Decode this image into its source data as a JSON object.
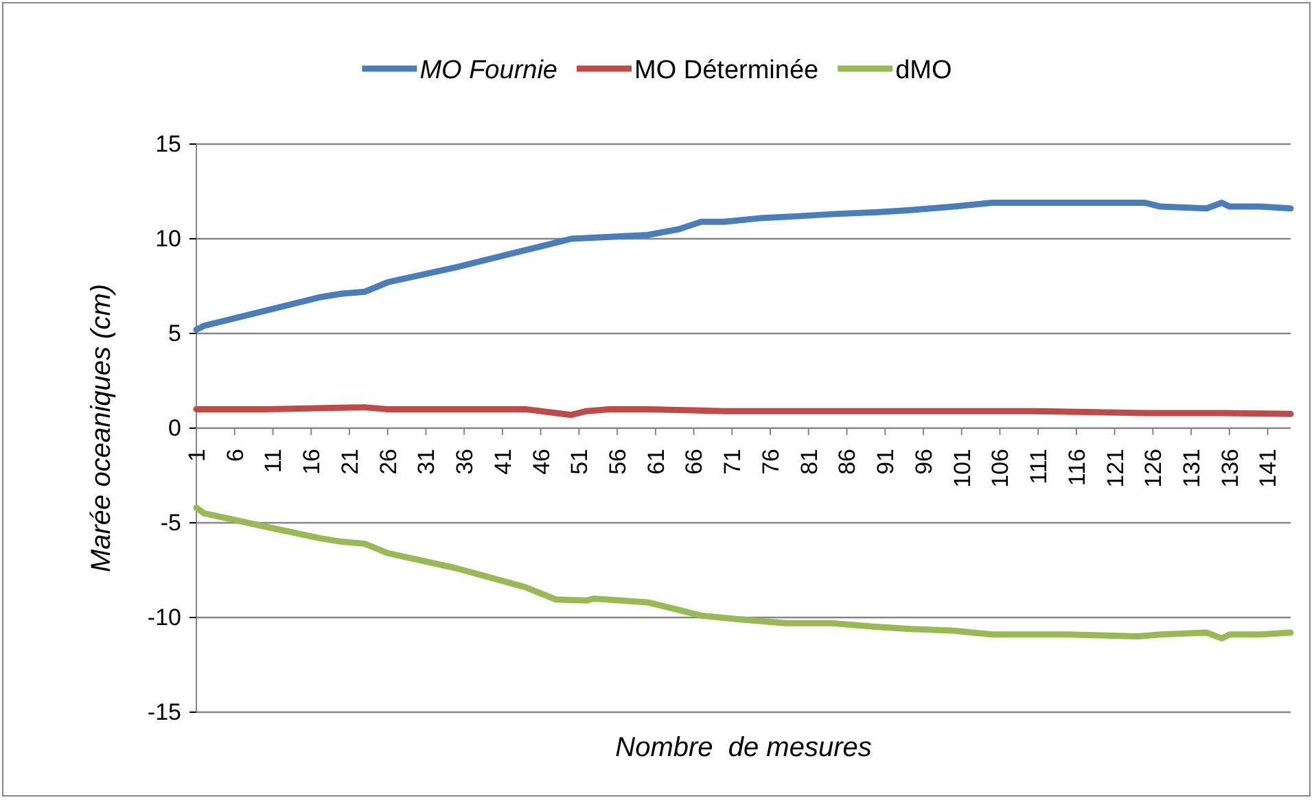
{
  "chart_data": {
    "type": "line",
    "xlabel": "Nombre  de mesures",
    "ylabel": "Marée oceaniques (cm)",
    "xlim": [
      1,
      144
    ],
    "ylim": [
      -15,
      15
    ],
    "yticks": [
      -15,
      -10,
      -5,
      0,
      5,
      10,
      15
    ],
    "xticks": [
      1,
      6,
      11,
      16,
      21,
      26,
      31,
      36,
      41,
      46,
      51,
      56,
      61,
      66,
      71,
      76,
      81,
      86,
      91,
      96,
      101,
      106,
      111,
      116,
      121,
      126,
      131,
      136,
      141
    ],
    "grid": "y",
    "legend": "top",
    "line_style": "solid",
    "marker": "none",
    "series": [
      {
        "name": "MO Fournie",
        "color": "#4a7ebb",
        "x": [
          1,
          2,
          10,
          17,
          20,
          23,
          26,
          35,
          44,
          48,
          50,
          55,
          60,
          64,
          67,
          70,
          75,
          80,
          84,
          90,
          94,
          100,
          105,
          115,
          125,
          127,
          133,
          135,
          136,
          140,
          144
        ],
        "values": [
          5.2,
          5.4,
          6.2,
          6.9,
          7.1,
          7.2,
          7.7,
          8.5,
          9.4,
          9.8,
          10.0,
          10.1,
          10.2,
          10.5,
          10.9,
          10.9,
          11.1,
          11.2,
          11.3,
          11.4,
          11.5,
          11.7,
          11.9,
          11.9,
          11.9,
          11.7,
          11.6,
          11.9,
          11.7,
          11.7,
          11.6
        ]
      },
      {
        "name": "MO Déterminée",
        "color": "#be4b48",
        "x": [
          1,
          10,
          23,
          26,
          40,
          44,
          48,
          50,
          52,
          55,
          60,
          70,
          90,
          110,
          125,
          135,
          144
        ],
        "values": [
          1.0,
          1.0,
          1.1,
          1.0,
          1.0,
          1.0,
          0.8,
          0.7,
          0.9,
          1.0,
          1.0,
          0.9,
          0.9,
          0.9,
          0.8,
          0.8,
          0.75
        ]
      },
      {
        "name": "dMO",
        "color": "#98b954",
        "x": [
          1,
          2,
          10,
          17,
          20,
          23,
          26,
          35,
          44,
          48,
          52,
          53,
          60,
          64,
          67,
          72,
          78,
          84,
          90,
          94,
          100,
          105,
          115,
          124,
          127,
          133,
          135,
          136,
          140,
          144
        ],
        "values": [
          -4.2,
          -4.5,
          -5.2,
          -5.8,
          -6.0,
          -6.1,
          -6.6,
          -7.4,
          -8.4,
          -9.05,
          -9.1,
          -9.0,
          -9.2,
          -9.6,
          -9.9,
          -10.1,
          -10.3,
          -10.3,
          -10.5,
          -10.6,
          -10.7,
          -10.9,
          -10.9,
          -11.0,
          -10.9,
          -10.8,
          -11.1,
          -10.9,
          -10.9,
          -10.8
        ]
      }
    ]
  }
}
